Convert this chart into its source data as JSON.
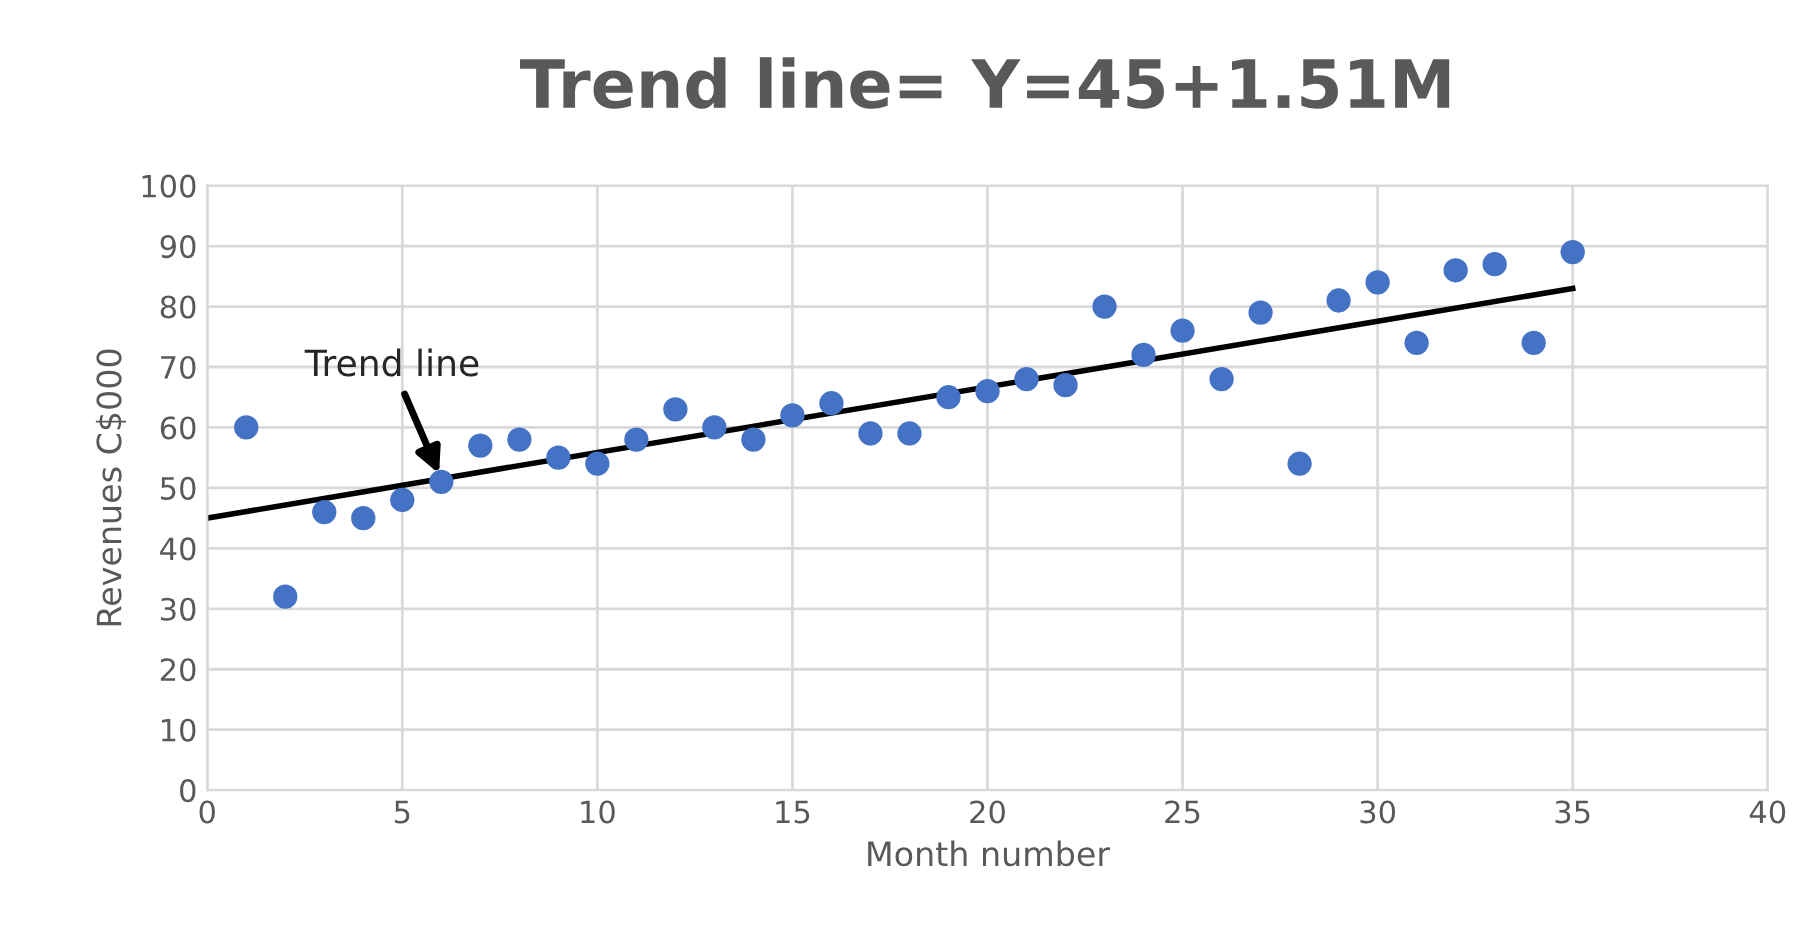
{
  "chart_data": {
    "type": "scatter",
    "title": "Trend line= Y=45+1.51M",
    "xlabel": "Month number",
    "ylabel": "Revenues C$000",
    "xlim": [
      0,
      40
    ],
    "xticks": [
      0,
      5,
      10,
      15,
      20,
      25,
      30,
      35,
      40
    ],
    "ylim": [
      0,
      100
    ],
    "yticks": [
      0,
      10,
      20,
      30,
      40,
      50,
      60,
      70,
      80,
      90,
      100
    ],
    "grid": true,
    "marker": "circle",
    "legend": false,
    "series": [
      {
        "color": "#4472c4",
        "x": [
          1,
          2,
          3,
          4,
          5,
          6,
          7,
          8,
          9,
          10,
          11,
          12,
          13,
          14,
          15,
          16,
          17,
          18,
          19,
          20,
          21,
          22,
          23,
          24,
          25,
          26,
          27,
          28,
          29,
          30,
          31,
          32,
          33,
          34,
          35
        ],
        "values": [
          60,
          32,
          46,
          45,
          48,
          51,
          57,
          58,
          55,
          54,
          58,
          63,
          60,
          58,
          62,
          64,
          59,
          59,
          65,
          66,
          68,
          67,
          80,
          72,
          76,
          68,
          79,
          54,
          81,
          84,
          74,
          86,
          87,
          74,
          89
        ]
      },
      {
        "type": "line",
        "marker": "none",
        "color": "#000000",
        "x": [
          0,
          35
        ],
        "values": [
          45,
          83
        ]
      }
    ],
    "annotations": [
      {
        "text": "Trend line",
        "x": 6,
        "y": 51.5
      }
    ]
  }
}
